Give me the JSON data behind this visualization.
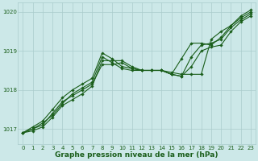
{
  "title": "Graphe pression niveau de la mer (hPa)",
  "bg_color": "#cce8e8",
  "grid_color": "#aacccc",
  "line_color": "#1a5e1a",
  "xlim": [
    -0.5,
    23.5
  ],
  "ylim": [
    1016.6,
    1020.25
  ],
  "yticks": [
    1017,
    1018,
    1019,
    1020
  ],
  "xticks": [
    0,
    1,
    2,
    3,
    4,
    5,
    6,
    7,
    8,
    9,
    10,
    11,
    12,
    13,
    14,
    15,
    16,
    17,
    18,
    19,
    20,
    21,
    22,
    23
  ],
  "series": [
    [
      1016.9,
      1016.95,
      1017.05,
      1017.3,
      1017.6,
      1017.75,
      1017.9,
      1018.1,
      1018.75,
      1018.75,
      1018.75,
      1018.6,
      1018.5,
      1018.5,
      1018.5,
      1018.4,
      1018.35,
      1018.6,
      1019.0,
      1019.1,
      1019.15,
      1019.5,
      1019.75,
      1019.9
    ],
    [
      1016.9,
      1017.0,
      1017.1,
      1017.4,
      1017.7,
      1017.85,
      1018.0,
      1018.15,
      1018.65,
      1018.65,
      1018.7,
      1018.55,
      1018.5,
      1018.5,
      1018.5,
      1018.4,
      1018.35,
      1018.85,
      1019.15,
      1019.2,
      1019.3,
      1019.6,
      1019.8,
      1019.95
    ],
    [
      1016.9,
      1017.0,
      1017.15,
      1017.35,
      1017.65,
      1017.9,
      1018.05,
      1018.2,
      1018.85,
      1018.7,
      1018.55,
      1018.5,
      1018.5,
      1018.5,
      1018.5,
      1018.4,
      1018.8,
      1019.2,
      1019.2,
      1019.15,
      1019.35,
      1019.65,
      1019.85,
      1020.0
    ],
    [
      1016.9,
      1017.05,
      1017.2,
      1017.5,
      1017.8,
      1018.0,
      1018.15,
      1018.3,
      1018.95,
      1018.8,
      1018.6,
      1018.55,
      1018.5,
      1018.5,
      1018.5,
      1018.45,
      1018.4,
      1018.4,
      1018.4,
      1019.3,
      1019.5,
      1019.65,
      1019.9,
      1020.05
    ]
  ],
  "figsize": [
    3.2,
    2.0
  ],
  "dpi": 100,
  "tick_fontsize": 5,
  "xlabel_fontsize": 6.5,
  "marker": "D",
  "markersize": 1.8,
  "linewidth": 0.8
}
